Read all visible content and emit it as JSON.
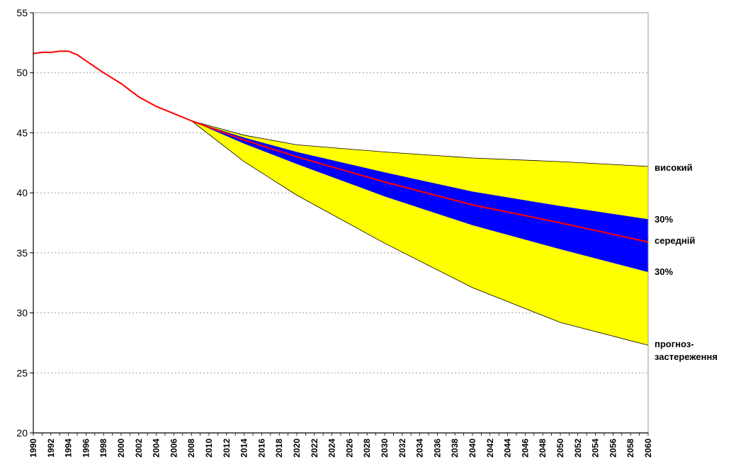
{
  "chart_data": {
    "type": "line",
    "title": "",
    "xlabel": "",
    "ylabel": "",
    "xlim": [
      1990,
      2060
    ],
    "ylim": [
      20,
      55
    ],
    "yticks": [
      20,
      25,
      30,
      35,
      40,
      45,
      50,
      55
    ],
    "xticks": [
      1990,
      1992,
      1994,
      1996,
      1998,
      2000,
      2002,
      2004,
      2006,
      2008,
      2010,
      2012,
      2014,
      2016,
      2018,
      2020,
      2022,
      2024,
      2026,
      2028,
      2030,
      2032,
      2034,
      2036,
      2038,
      2040,
      2042,
      2044,
      2046,
      2048,
      2050,
      2052,
      2054,
      2056,
      2058,
      2060
    ],
    "grid": "horizontal dotted",
    "colors": {
      "historical_line": "#ff0000",
      "outer_band": "#ffff00",
      "inner_band": "#0000ff",
      "band_edge": "#000000",
      "grid": "#999999"
    },
    "series": [
      {
        "name": "",
        "role": "historical",
        "x": [
          1990,
          1991,
          1992,
          1993,
          1994,
          1995,
          1996,
          1998,
          2000,
          2002,
          2004,
          2006,
          2008
        ],
        "y": [
          51.6,
          51.7,
          51.7,
          51.8,
          51.8,
          51.5,
          51.0,
          50.0,
          49.1,
          48.0,
          47.2,
          46.6,
          46.0
        ]
      },
      {
        "name": "середній",
        "role": "medium forecast",
        "x": [
          2008,
          2014,
          2020,
          2030,
          2040,
          2050,
          2060
        ],
        "y": [
          46.0,
          44.4,
          43.0,
          40.9,
          39.0,
          37.5,
          35.9
        ]
      },
      {
        "name": "високий",
        "role": "high forecast (upper edge of yellow band)",
        "x": [
          2008,
          2014,
          2020,
          2030,
          2040,
          2050,
          2060
        ],
        "y": [
          46.0,
          44.8,
          44.0,
          43.4,
          42.9,
          42.6,
          42.2
        ]
      },
      {
        "name": "прогноз-застереження",
        "role": "warning forecast (lower edge of yellow band)",
        "x": [
          2008,
          2014,
          2020,
          2030,
          2040,
          2050,
          2060
        ],
        "y": [
          46.0,
          42.6,
          39.8,
          35.8,
          32.1,
          29.2,
          27.3
        ]
      },
      {
        "name": "30% upper",
        "role": "upper edge of blue band",
        "x": [
          2008,
          2014,
          2020,
          2030,
          2040,
          2050,
          2060
        ],
        "y": [
          46.0,
          44.6,
          43.4,
          41.7,
          40.1,
          38.9,
          37.8
        ]
      },
      {
        "name": "30% lower",
        "role": "lower edge of blue band",
        "x": [
          2008,
          2014,
          2020,
          2030,
          2040,
          2050,
          2060
        ],
        "y": [
          46.0,
          44.1,
          42.4,
          39.7,
          37.3,
          35.3,
          33.4
        ]
      }
    ],
    "annotations": [
      {
        "text": "високий",
        "at_value": 42.2
      },
      {
        "text": "30%",
        "at_value": 37.8
      },
      {
        "text": "середній",
        "at_value": 35.9
      },
      {
        "text": "30%",
        "at_value": 33.4
      },
      {
        "text": "прогноз-",
        "at_value": 27.3
      },
      {
        "text": "застереження",
        "at_value": 27.3
      }
    ]
  }
}
